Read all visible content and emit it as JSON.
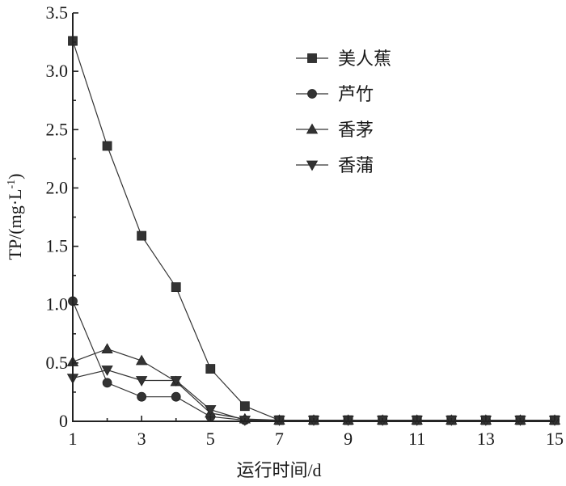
{
  "chart_data": {
    "type": "line",
    "title": "",
    "xlabel": "运行时间/d",
    "ylabel": "TP/(mg·L",
    "ylabel_sup": "-1",
    "ylabel_close": ")",
    "xlim": [
      1,
      15
    ],
    "ylim": [
      0,
      3.5
    ],
    "x_ticks_major": [
      1,
      3,
      5,
      7,
      9,
      11,
      13,
      15
    ],
    "x_tick_labels": [
      "1",
      "3",
      "5",
      "7",
      "9",
      "11",
      "13",
      "15"
    ],
    "x_ticks_minor": [
      2,
      4,
      6,
      8,
      10,
      12,
      14
    ],
    "y_ticks": [
      0,
      0.5,
      1.0,
      1.5,
      2.0,
      2.5,
      3.0,
      3.5
    ],
    "y_tick_labels": [
      "0",
      "0.5",
      "1.0",
      "1.5",
      "2.0",
      "2.5",
      "3.0",
      "3.5"
    ],
    "grid": false,
    "legend_position": "top-right",
    "x": [
      1,
      2,
      3,
      4,
      5,
      6,
      7,
      8,
      9,
      10,
      11,
      12,
      13,
      14,
      15
    ],
    "series": [
      {
        "name": "美人蕉",
        "marker": "square",
        "values": [
          3.26,
          2.36,
          1.59,
          1.15,
          0.45,
          0.13,
          0.01,
          0.01,
          0.01,
          0.01,
          0.01,
          0.01,
          0.01,
          0.01,
          0.01
        ]
      },
      {
        "name": "芦竹",
        "marker": "circle",
        "values": [
          1.03,
          0.33,
          0.21,
          0.21,
          0.04,
          0.01,
          0.01,
          0.01,
          0.01,
          0.01,
          0.01,
          0.01,
          0.01,
          0.01,
          0.01
        ]
      },
      {
        "name": "香茅",
        "marker": "triangle-up",
        "values": [
          0.51,
          0.62,
          0.52,
          0.34,
          0.07,
          0.02,
          0.01,
          0.01,
          0.01,
          0.01,
          0.01,
          0.01,
          0.01,
          0.01,
          0.01
        ]
      },
      {
        "name": "香蒲",
        "marker": "triangle-down",
        "values": [
          0.37,
          0.44,
          0.35,
          0.35,
          0.1,
          0.01,
          0.01,
          0.01,
          0.01,
          0.01,
          0.01,
          0.01,
          0.01,
          0.01,
          0.01
        ]
      }
    ]
  }
}
